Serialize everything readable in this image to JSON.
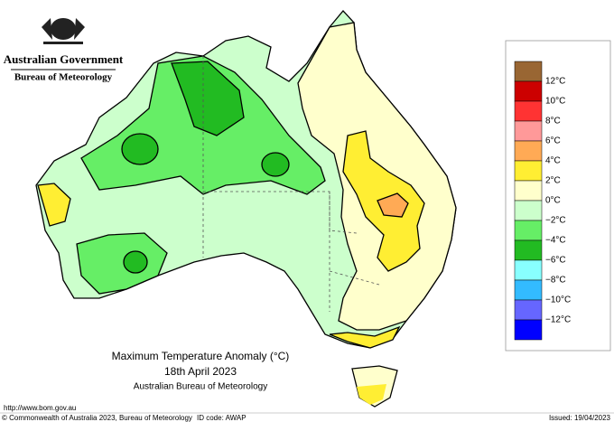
{
  "header": {
    "government": "Australian Government",
    "agency": "Bureau of Meteorology"
  },
  "title": {
    "line1": "Maximum Temperature Anomaly (°C)",
    "line2": "18th April 2023",
    "line3": "Australian Bureau of Meteorology"
  },
  "legend": {
    "labels": [
      "12°C",
      "10°C",
      "8°C",
      "6°C",
      "4°C",
      "2°C",
      "0°C",
      "−2°C",
      "−4°C",
      "−6°C",
      "−8°C",
      "−10°C",
      "−12°C"
    ],
    "colors": [
      "#996633",
      "#cc0000",
      "#ff3333",
      "#ff9999",
      "#ffaa55",
      "#ffee33",
      "#ffffcc",
      "#ccffcc",
      "#66ee66",
      "#22bb22",
      "#88ffff",
      "#33bbff",
      "#6666ff",
      "#0000ff"
    ]
  },
  "footer": {
    "url": "http://www.bom.gov.au",
    "copyright": "© Commonwealth of Australia 2023, Bureau of Meteorology",
    "id_code": "ID code: AWAP",
    "issued": "Issued: 19/04/2023"
  }
}
